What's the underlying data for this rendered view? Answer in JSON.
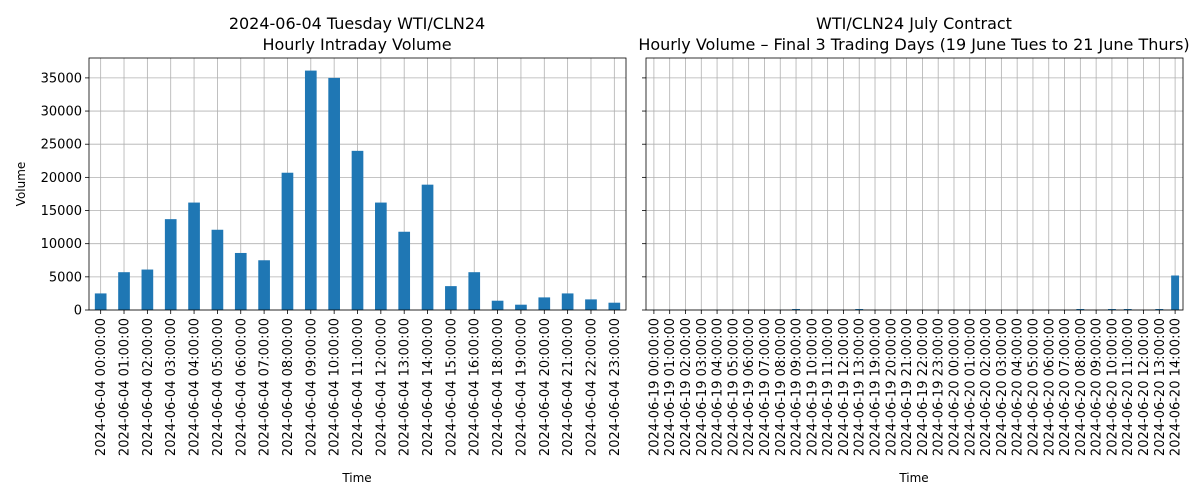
{
  "chart_data": [
    {
      "type": "bar",
      "title": "2024-06-04 Tuesday WTI/CLN24",
      "subtitle": "Hourly Intraday Volume",
      "xlabel": "Time",
      "ylabel": "Volume",
      "ylim": [
        0,
        38000
      ],
      "yticks": [
        0,
        5000,
        10000,
        15000,
        20000,
        25000,
        30000,
        35000
      ],
      "grid": true,
      "color": "#1f77b4",
      "categories": [
        "2024-06-04 00:00:00",
        "2024-06-04 01:00:00",
        "2024-06-04 02:00:00",
        "2024-06-04 03:00:00",
        "2024-06-04 04:00:00",
        "2024-06-04 05:00:00",
        "2024-06-04 06:00:00",
        "2024-06-04 07:00:00",
        "2024-06-04 08:00:00",
        "2024-06-04 09:00:00",
        "2024-06-04 10:00:00",
        "2024-06-04 11:00:00",
        "2024-06-04 12:00:00",
        "2024-06-04 13:00:00",
        "2024-06-04 14:00:00",
        "2024-06-04 15:00:00",
        "2024-06-04 16:00:00",
        "2024-06-04 18:00:00",
        "2024-06-04 19:00:00",
        "2024-06-04 20:00:00",
        "2024-06-04 21:00:00",
        "2024-06-04 22:00:00",
        "2024-06-04 23:00:00"
      ],
      "values": [
        2500,
        5700,
        6100,
        13700,
        16200,
        12100,
        8600,
        7500,
        20700,
        36100,
        35000,
        24000,
        16200,
        11800,
        18900,
        3600,
        5700,
        1400,
        800,
        1900,
        2500,
        1600,
        1100
      ]
    },
    {
      "type": "bar",
      "title": "WTI/CLN24 July Contract",
      "subtitle": "Hourly Volume – Final 3 Trading Days (19 June Tues to 21 June Thurs)",
      "xlabel": "Time",
      "ylabel": "",
      "ylim": [
        0,
        38000
      ],
      "grid": true,
      "color": "#1f77b4",
      "categories": [
        "2024-06-19 00:00:00",
        "2024-06-19 01:00:00",
        "2024-06-19 02:00:00",
        "2024-06-19 03:00:00",
        "2024-06-19 04:00:00",
        "2024-06-19 05:00:00",
        "2024-06-19 06:00:00",
        "2024-06-19 07:00:00",
        "2024-06-19 08:00:00",
        "2024-06-19 09:00:00",
        "2024-06-19 10:00:00",
        "2024-06-19 11:00:00",
        "2024-06-19 12:00:00",
        "2024-06-19 13:00:00",
        "2024-06-19 19:00:00",
        "2024-06-19 20:00:00",
        "2024-06-19 21:00:00",
        "2024-06-19 22:00:00",
        "2024-06-19 23:00:00",
        "2024-06-20 00:00:00",
        "2024-06-20 01:00:00",
        "2024-06-20 02:00:00",
        "2024-06-20 03:00:00",
        "2024-06-20 04:00:00",
        "2024-06-20 05:00:00",
        "2024-06-20 06:00:00",
        "2024-06-20 07:00:00",
        "2024-06-20 08:00:00",
        "2024-06-20 09:00:00",
        "2024-06-20 10:00:00",
        "2024-06-20 11:00:00",
        "2024-06-20 12:00:00",
        "2024-06-20 13:00:00",
        "2024-06-20 14:00:00"
      ],
      "values": [
        20,
        10,
        10,
        10,
        20,
        10,
        10,
        10,
        20,
        150,
        20,
        10,
        10,
        150,
        10,
        10,
        10,
        10,
        10,
        10,
        10,
        20,
        10,
        10,
        10,
        10,
        10,
        150,
        10,
        150,
        150,
        10,
        150,
        5200
      ]
    }
  ]
}
